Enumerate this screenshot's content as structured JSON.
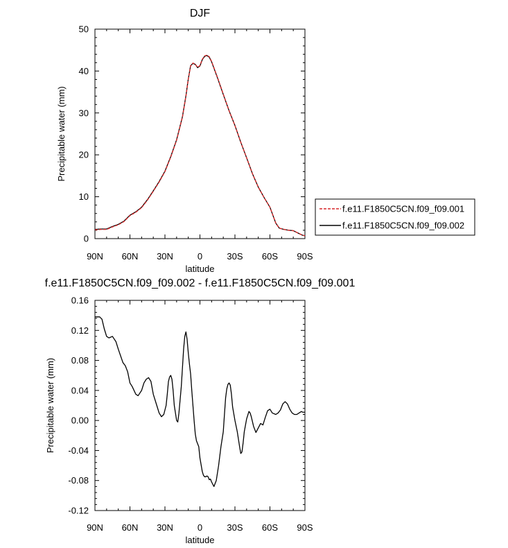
{
  "chart_data": [
    {
      "type": "line",
      "title": "DJF",
      "xlabel": "latitude",
      "ylabel": "Precipitable water (mm)",
      "xlim": [
        90,
        -90
      ],
      "ylim": [
        0,
        50
      ],
      "x_ticks": [
        {
          "value": 90,
          "label": "90N"
        },
        {
          "value": 60,
          "label": "60N"
        },
        {
          "value": 30,
          "label": "30N"
        },
        {
          "value": 0,
          "label": "0"
        },
        {
          "value": -30,
          "label": "30S"
        },
        {
          "value": -60,
          "label": "60S"
        },
        {
          "value": -90,
          "label": "90S"
        }
      ],
      "y_ticks": [
        {
          "value": 0,
          "label": "0"
        },
        {
          "value": 10,
          "label": "10"
        },
        {
          "value": 20,
          "label": "20"
        },
        {
          "value": 30,
          "label": "30"
        },
        {
          "value": 40,
          "label": "40"
        },
        {
          "value": 50,
          "label": "50"
        }
      ],
      "legend": {
        "placement": "right"
      },
      "series": [
        {
          "name": "f.e11.F1850C5CN.f09_f09.001",
          "color": "#d62728",
          "style": "dashed",
          "x": [
            90,
            85,
            80,
            75,
            70,
            65,
            60,
            55,
            50,
            45,
            40,
            35,
            30,
            25,
            20,
            15,
            12,
            10,
            8,
            6,
            4,
            2,
            0,
            -2,
            -4,
            -6,
            -8,
            -10,
            -15,
            -20,
            -25,
            -30,
            -35,
            -40,
            -45,
            -50,
            -55,
            -60,
            -65,
            -68,
            -72,
            -76,
            -80,
            -85,
            -88,
            -90
          ],
          "y": [
            2.1,
            2.2,
            2.2,
            2.8,
            3.3,
            4.1,
            5.5,
            6.3,
            7.4,
            9.2,
            11.3,
            13.5,
            16.0,
            19.5,
            23.5,
            29.0,
            34.0,
            38.0,
            41.2,
            41.9,
            41.6,
            40.9,
            41.3,
            42.8,
            43.6,
            43.8,
            43.4,
            42.3,
            38.5,
            34.5,
            30.5,
            27.0,
            23.0,
            19.3,
            15.5,
            12.3,
            9.8,
            7.5,
            3.7,
            2.5,
            2.2,
            2.0,
            1.9,
            1.2,
            0.8,
            0.7
          ]
        },
        {
          "name": "f.e11.F1850C5CN.f09_f09.002",
          "color": "#000000",
          "style": "solid",
          "x": [
            90,
            85,
            80,
            75,
            70,
            65,
            60,
            55,
            50,
            45,
            40,
            35,
            30,
            25,
            20,
            15,
            12,
            10,
            8,
            6,
            4,
            2,
            0,
            -2,
            -4,
            -6,
            -8,
            -10,
            -15,
            -20,
            -25,
            -30,
            -35,
            -40,
            -45,
            -50,
            -55,
            -60,
            -65,
            -68,
            -72,
            -76,
            -80,
            -85,
            -88,
            -90
          ],
          "y": [
            2.2,
            2.3,
            2.3,
            2.9,
            3.4,
            4.2,
            5.6,
            6.4,
            7.5,
            9.3,
            11.4,
            13.6,
            16.1,
            19.6,
            23.6,
            29.1,
            34.1,
            38.1,
            41.3,
            41.8,
            41.6,
            40.8,
            41.2,
            42.7,
            43.5,
            43.7,
            43.3,
            42.2,
            38.4,
            34.4,
            30.5,
            27.0,
            23.0,
            19.3,
            15.5,
            12.3,
            9.8,
            7.5,
            3.7,
            2.5,
            2.2,
            2.0,
            1.9,
            1.2,
            0.8,
            0.7
          ]
        }
      ]
    },
    {
      "type": "line",
      "title": "f.e11.F1850C5CN.f09_f09.002 - f.e11.F1850C5CN.f09_f09.001",
      "xlabel": "latitude",
      "ylabel": "Precipitable water (mm)",
      "xlim": [
        90,
        -90
      ],
      "ylim": [
        -0.12,
        0.16
      ],
      "x_ticks": [
        {
          "value": 90,
          "label": "90N"
        },
        {
          "value": 60,
          "label": "60N"
        },
        {
          "value": 30,
          "label": "30N"
        },
        {
          "value": 0,
          "label": "0"
        },
        {
          "value": -30,
          "label": "30S"
        },
        {
          "value": -60,
          "label": "60S"
        },
        {
          "value": -90,
          "label": "90S"
        }
      ],
      "y_ticks": [
        {
          "value": -0.12,
          "label": "-0.12"
        },
        {
          "value": -0.08,
          "label": "-0.08"
        },
        {
          "value": -0.04,
          "label": "-0.04"
        },
        {
          "value": 0,
          "label": "0.00"
        },
        {
          "value": 0.04,
          "label": "0.04"
        },
        {
          "value": 0.08,
          "label": "0.08"
        },
        {
          "value": 0.12,
          "label": "0.12"
        },
        {
          "value": 0.16,
          "label": "0.16"
        }
      ],
      "series": [
        {
          "color": "#000000",
          "style": "solid",
          "x": [
            90,
            86,
            84,
            82,
            80,
            78,
            75,
            72,
            70,
            66,
            64,
            62,
            60,
            58,
            55,
            53,
            50,
            48,
            46,
            44,
            42,
            40,
            37,
            35,
            33,
            31,
            29,
            28,
            27,
            26,
            25,
            24,
            23,
            22,
            20,
            19,
            18,
            16,
            15,
            14,
            13,
            12,
            11,
            10,
            9,
            8,
            7,
            5,
            4,
            3,
            1,
            0,
            -2,
            -3,
            -4,
            -5,
            -6,
            -7,
            -8,
            -9,
            -10,
            -11,
            -12,
            -13,
            -14,
            -16,
            -18,
            -20,
            -21,
            -22,
            -23,
            -24,
            -25,
            -26,
            -27,
            -28,
            -30,
            -32,
            -33,
            -34,
            -35,
            -36,
            -37,
            -38,
            -40,
            -42,
            -43,
            -44,
            -46,
            -48,
            -50,
            -52,
            -54,
            -56,
            -58,
            -60,
            -62,
            -65,
            -67,
            -69,
            -71,
            -73,
            -75,
            -77,
            -79,
            -81,
            -83,
            -85,
            -87,
            -88,
            -90
          ],
          "y": [
            0.138,
            0.138,
            0.135,
            0.122,
            0.112,
            0.11,
            0.112,
            0.105,
            0.095,
            0.077,
            0.073,
            0.065,
            0.05,
            0.045,
            0.035,
            0.033,
            0.04,
            0.05,
            0.055,
            0.057,
            0.052,
            0.035,
            0.02,
            0.01,
            0.005,
            0.008,
            0.02,
            0.035,
            0.052,
            0.058,
            0.06,
            0.055,
            0.04,
            0.02,
            0.0,
            -0.002,
            0.01,
            0.045,
            0.07,
            0.095,
            0.112,
            0.118,
            0.108,
            0.09,
            0.075,
            0.062,
            0.04,
            0.0,
            -0.018,
            -0.027,
            -0.035,
            -0.05,
            -0.068,
            -0.073,
            -0.075,
            -0.075,
            -0.074,
            -0.075,
            -0.079,
            -0.078,
            -0.082,
            -0.085,
            -0.088,
            -0.084,
            -0.08,
            -0.06,
            -0.035,
            -0.015,
            0.008,
            0.03,
            0.042,
            0.048,
            0.05,
            0.047,
            0.035,
            0.018,
            0.0,
            -0.015,
            -0.025,
            -0.035,
            -0.044,
            -0.042,
            -0.03,
            -0.015,
            0.002,
            0.012,
            0.01,
            0.005,
            -0.008,
            -0.016,
            -0.01,
            -0.004,
            -0.006,
            0.004,
            0.013,
            0.015,
            0.01,
            0.008,
            0.01,
            0.014,
            0.022,
            0.025,
            0.022,
            0.015,
            0.01,
            0.008,
            0.008,
            0.01,
            0.012,
            0.011,
            0.011
          ]
        }
      ]
    }
  ]
}
